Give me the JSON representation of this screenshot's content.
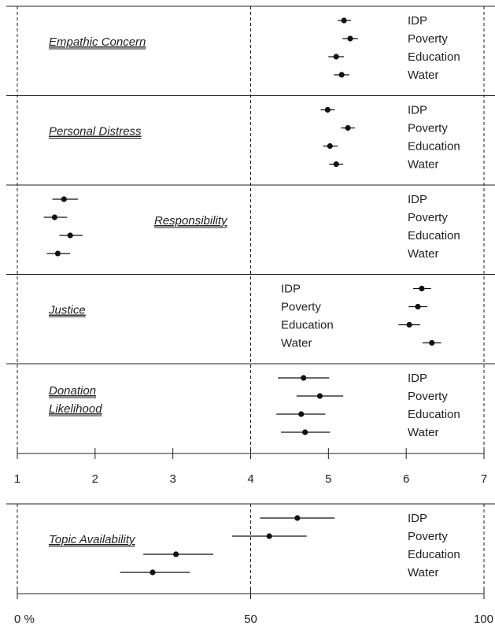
{
  "chart_data": [
    {
      "type": "scatter",
      "orientation": "horizontal dot plot with error bars",
      "xlim": [
        1,
        7
      ],
      "xticks": [
        "1",
        "2",
        "3",
        "4",
        "5",
        "6",
        "7"
      ],
      "reference_lines": [
        1,
        4,
        7
      ],
      "panels": [
        {
          "title": [
            "Empathic Concern"
          ],
          "legend_side": "right",
          "categories": [
            "IDP",
            "Poverty",
            "Education",
            "Water"
          ],
          "values": [
            5.2,
            5.28,
            5.1,
            5.17
          ],
          "error_low": [
            5.12,
            5.18,
            5.0,
            5.07
          ],
          "error_high": [
            5.29,
            5.38,
            5.2,
            5.27
          ]
        },
        {
          "title": [
            "Personal Distress"
          ],
          "legend_side": "right",
          "categories": [
            "IDP",
            "Poverty",
            "Education",
            "Water"
          ],
          "values": [
            4.99,
            5.25,
            5.02,
            5.1
          ],
          "error_low": [
            4.9,
            5.16,
            4.93,
            5.01
          ],
          "error_high": [
            5.08,
            5.34,
            5.12,
            5.19
          ]
        },
        {
          "title": [
            "Responsibility"
          ],
          "legend_side": "right",
          "categories": [
            "IDP",
            "Poverty",
            "Education",
            "Water"
          ],
          "values": [
            1.6,
            1.48,
            1.68,
            1.52
          ],
          "error_low": [
            1.45,
            1.34,
            1.54,
            1.38
          ],
          "error_high": [
            1.78,
            1.64,
            1.84,
            1.68
          ]
        },
        {
          "title": [
            "Justice"
          ],
          "legend_side": "left",
          "categories": [
            "IDP",
            "Poverty",
            "Education",
            "Water"
          ],
          "values": [
            6.2,
            6.15,
            6.04,
            6.33
          ],
          "error_low": [
            6.09,
            6.03,
            5.9,
            6.21
          ],
          "error_high": [
            6.32,
            6.27,
            6.18,
            6.45
          ]
        },
        {
          "title": [
            "Donation",
            "Likelihood"
          ],
          "legend_side": "right",
          "categories": [
            "IDP",
            "Poverty",
            "Education",
            "Water"
          ],
          "values": [
            4.68,
            4.89,
            4.65,
            4.7
          ],
          "error_low": [
            4.35,
            4.59,
            4.33,
            4.39
          ],
          "error_high": [
            5.01,
            5.19,
            4.96,
            5.02
          ]
        }
      ]
    },
    {
      "type": "scatter",
      "orientation": "horizontal dot plot with error bars",
      "xlim": [
        0,
        100
      ],
      "xticks": [
        "0 %",
        "50",
        "100"
      ],
      "reference_lines": [
        0,
        50,
        100
      ],
      "panels": [
        {
          "title": [
            "Topic Availability"
          ],
          "legend_side": "right",
          "categories": [
            "IDP",
            "Poverty",
            "Education",
            "Water"
          ],
          "values": [
            60,
            54,
            34,
            29
          ],
          "error_low": [
            52,
            46,
            27,
            22
          ],
          "error_high": [
            68,
            62,
            42,
            37
          ]
        }
      ]
    }
  ]
}
